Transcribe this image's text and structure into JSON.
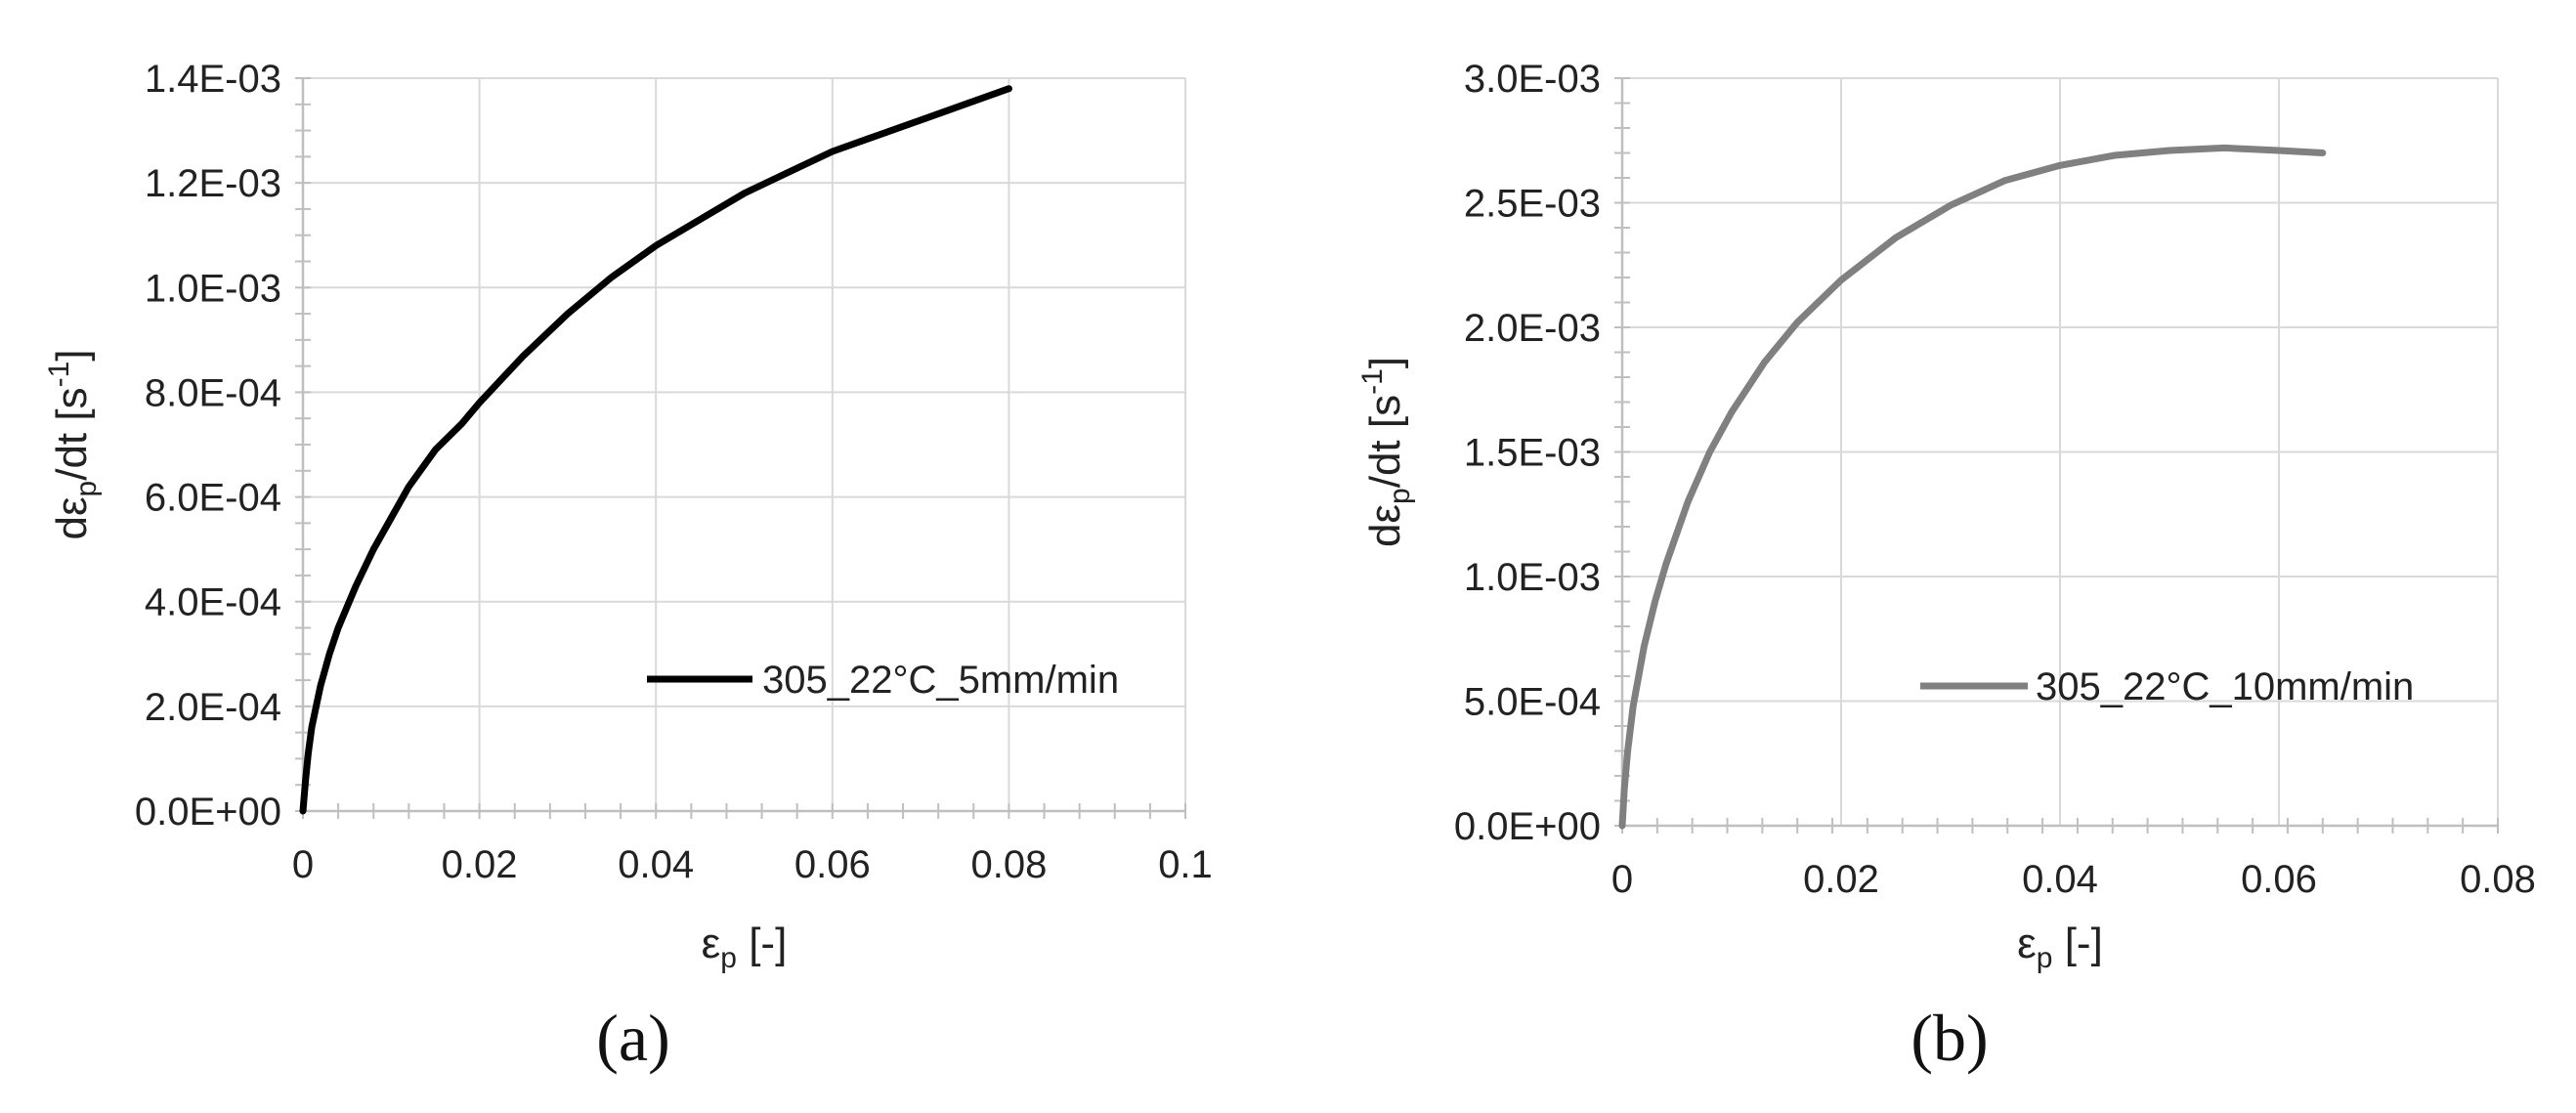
{
  "chart_data": [
    {
      "type": "line",
      "panel_label": "(a)",
      "xlabel": "εp [-]",
      "ylabel": "dεp/dt [s-1]",
      "xlim": [
        0,
        0.1
      ],
      "ylim": [
        0,
        0.0014
      ],
      "x_ticks": [
        "0",
        "0.02",
        "0.04",
        "0.06",
        "0.08",
        "0.1"
      ],
      "y_ticks": [
        "0.0E+00",
        "2.0E-04",
        "4.0E-04",
        "6.0E-04",
        "8.0E-04",
        "1.0E-03",
        "1.2E-03",
        "1.4E-03"
      ],
      "grid": true,
      "legend_position": "lower-right",
      "series": [
        {
          "name": "305_22°C_5mm/min",
          "color": "#000000",
          "x": [
            0,
            0.0003,
            0.0006,
            0.001,
            0.0015,
            0.002,
            0.003,
            0.004,
            0.005,
            0.006,
            0.008,
            0.01,
            0.012,
            0.015,
            0.018,
            0.02,
            0.025,
            0.03,
            0.035,
            0.04,
            0.045,
            0.05,
            0.055,
            0.06,
            0.065,
            0.07,
            0.075,
            0.08
          ],
          "y": [
            0,
            6e-05,
            0.00011,
            0.00016,
            0.0002,
            0.00024,
            0.0003,
            0.00035,
            0.00039,
            0.00043,
            0.0005,
            0.00056,
            0.00062,
            0.00069,
            0.00074,
            0.00078,
            0.00087,
            0.00095,
            0.00102,
            0.00108,
            0.00113,
            0.00118,
            0.00122,
            0.00126,
            0.00129,
            0.00132,
            0.00135,
            0.00138
          ]
        }
      ]
    },
    {
      "type": "line",
      "panel_label": "(b)",
      "xlabel": "εp [-]",
      "ylabel": "dεp/dt [s-1]",
      "xlim": [
        0,
        0.08
      ],
      "ylim": [
        0,
        0.003
      ],
      "x_ticks": [
        "0",
        "0.02",
        "0.04",
        "0.06",
        "0.08"
      ],
      "y_ticks": [
        "0.0E+00",
        "5.0E-04",
        "1.0E-03",
        "1.5E-03",
        "2.0E-03",
        "2.5E-03",
        "3.0E-03"
      ],
      "grid": true,
      "legend_position": "lower-right",
      "series": [
        {
          "name": "305_22°C_10mm/min",
          "color": "#808080",
          "x": [
            0,
            0.0002,
            0.0005,
            0.001,
            0.002,
            0.003,
            0.004,
            0.006,
            0.008,
            0.01,
            0.013,
            0.016,
            0.02,
            0.025,
            0.03,
            0.035,
            0.04,
            0.045,
            0.05,
            0.055,
            0.06,
            0.064
          ],
          "y": [
            0,
            0.00015,
            0.0003,
            0.00048,
            0.00072,
            0.0009,
            0.00105,
            0.0013,
            0.0015,
            0.00166,
            0.00186,
            0.00202,
            0.00219,
            0.00236,
            0.00249,
            0.00259,
            0.00265,
            0.00269,
            0.00271,
            0.00272,
            0.00271,
            0.0027
          ]
        }
      ]
    }
  ]
}
